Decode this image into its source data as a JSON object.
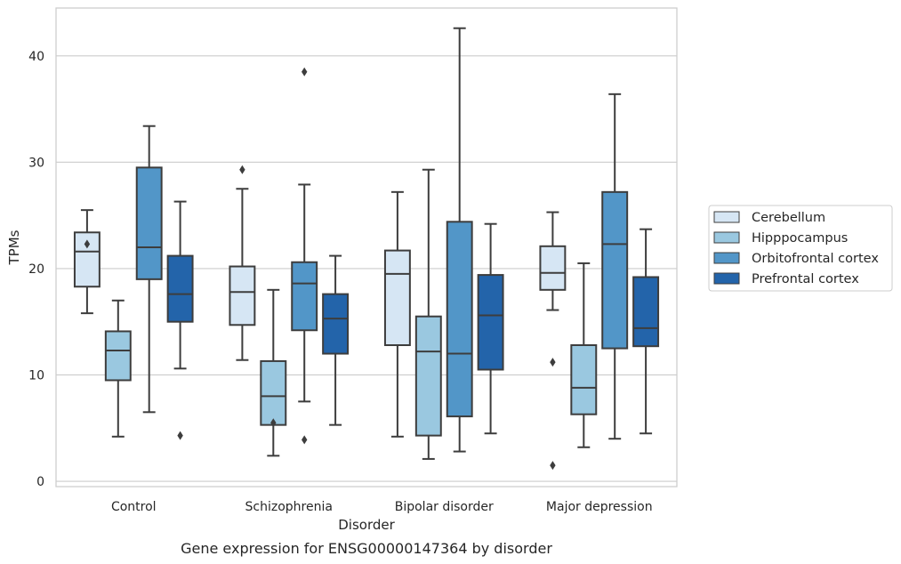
{
  "chart_data": {
    "type": "box",
    "xlabel": "Disorder",
    "ylabel": "TPMs",
    "caption": "Gene expression for ENSG00000147364 by disorder",
    "categories": [
      "Control",
      "Schizophrenia",
      "Bipolar disorder",
      "Major depression"
    ],
    "yticks": [
      "0",
      "10",
      "20",
      "30",
      "40"
    ],
    "ylim": [
      -0.5,
      44.5
    ],
    "grid": "horizontal",
    "legend_position": "right",
    "series": [
      {
        "name": "Cerebellum",
        "color": "#d6e6f4",
        "boxes": [
          {
            "min": 15.8,
            "q1": 18.3,
            "median": 21.6,
            "q3": 23.4,
            "max": 25.5,
            "outliers": [
              22.3
            ]
          },
          {
            "min": 11.4,
            "q1": 14.7,
            "median": 17.8,
            "q3": 20.2,
            "max": 27.5,
            "outliers": [
              29.3
            ]
          },
          {
            "min": 4.2,
            "q1": 12.8,
            "median": 19.5,
            "q3": 21.7,
            "max": 27.2,
            "outliers": []
          },
          {
            "min": 16.1,
            "q1": 18.0,
            "median": 19.6,
            "q3": 22.1,
            "max": 25.3,
            "outliers": [
              11.2,
              1.5
            ]
          }
        ]
      },
      {
        "name": "Hipppocampus",
        "color": "#9ac8e0",
        "boxes": [
          {
            "min": 4.2,
            "q1": 9.5,
            "median": 12.3,
            "q3": 14.1,
            "max": 17.0,
            "outliers": []
          },
          {
            "min": 2.4,
            "q1": 5.3,
            "median": 8.0,
            "q3": 11.3,
            "max": 18.0,
            "outliers": [
              5.5
            ]
          },
          {
            "min": 2.1,
            "q1": 4.3,
            "median": 12.2,
            "q3": 15.5,
            "max": 29.3,
            "outliers": []
          },
          {
            "min": 3.2,
            "q1": 6.3,
            "median": 8.8,
            "q3": 12.8,
            "max": 20.5,
            "outliers": []
          }
        ]
      },
      {
        "name": "Orbitofrontal cortex",
        "color": "#5296c8",
        "boxes": [
          {
            "min": 6.5,
            "q1": 19.0,
            "median": 22.0,
            "q3": 29.5,
            "max": 33.4,
            "outliers": []
          },
          {
            "min": 7.5,
            "q1": 14.2,
            "median": 18.6,
            "q3": 20.6,
            "max": 27.9,
            "outliers": [
              38.5,
              3.9
            ]
          },
          {
            "min": 2.8,
            "q1": 6.1,
            "median": 12.0,
            "q3": 24.4,
            "max": 42.6,
            "outliers": []
          },
          {
            "min": 4.0,
            "q1": 12.5,
            "median": 22.3,
            "q3": 27.2,
            "max": 36.4,
            "outliers": []
          }
        ]
      },
      {
        "name": "Prefrontal cortex",
        "color": "#2364aa",
        "boxes": [
          {
            "min": 10.6,
            "q1": 15.0,
            "median": 17.6,
            "q3": 21.2,
            "max": 26.3,
            "outliers": [
              4.3
            ]
          },
          {
            "min": 5.3,
            "q1": 12.0,
            "median": 15.3,
            "q3": 17.6,
            "max": 21.2,
            "outliers": []
          },
          {
            "min": 4.5,
            "q1": 10.5,
            "median": 15.6,
            "q3": 19.4,
            "max": 24.2,
            "outliers": []
          },
          {
            "min": 4.5,
            "q1": 12.7,
            "median": 14.4,
            "q3": 19.2,
            "max": 23.7,
            "outliers": []
          }
        ]
      }
    ]
  }
}
